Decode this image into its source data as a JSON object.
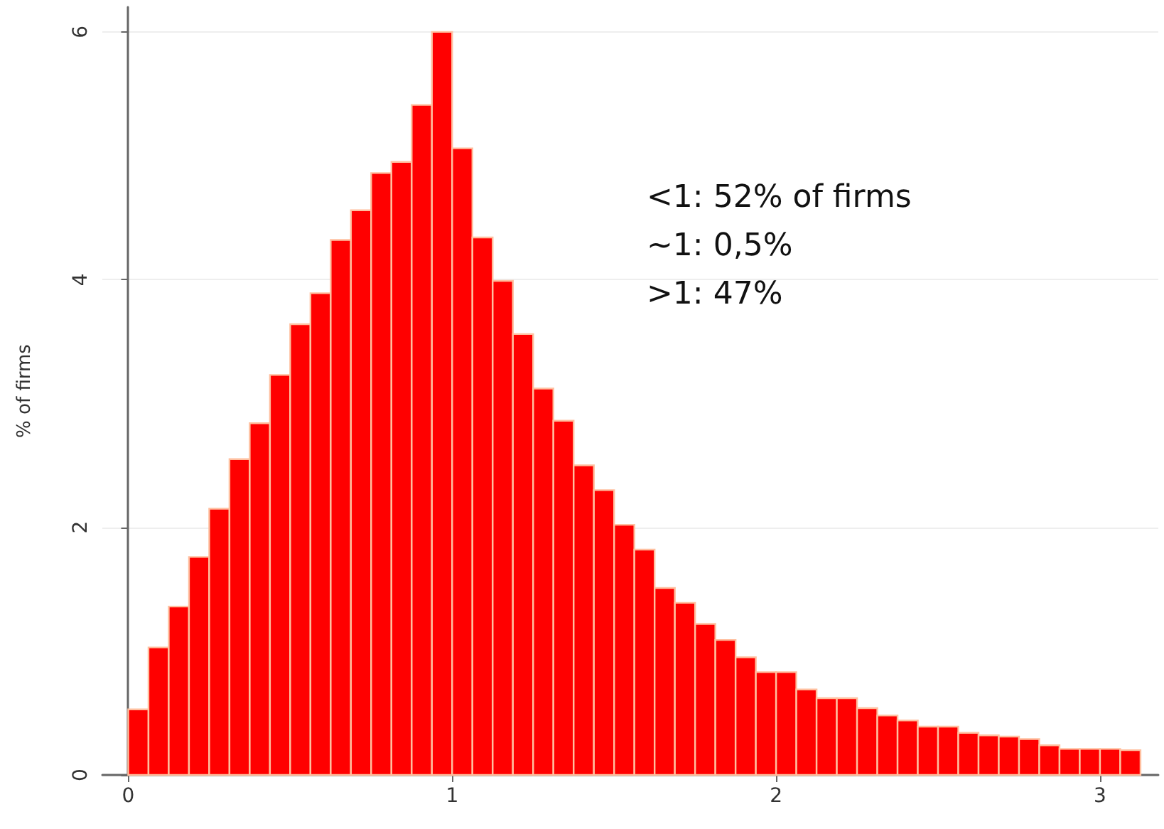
{
  "chart_data": {
    "type": "histogram",
    "ylabel": "% of firms",
    "color": "#ff0000",
    "bins": [
      0,
      0.0625,
      0.125,
      0.1875,
      0.25,
      0.3125,
      0.375,
      0.4375,
      0.5,
      0.5625,
      0.625,
      0.6875,
      0.75,
      0.8125,
      0.875,
      0.9375,
      1,
      1.0625,
      1.125,
      1.1875,
      1.25,
      1.3125,
      1.375,
      1.4375,
      1.5,
      1.5625,
      1.625,
      1.6875,
      1.75,
      1.8125,
      1.875,
      1.9375,
      2,
      2.0625,
      2.125,
      2.1875,
      2.25,
      2.3125,
      2.375,
      2.4375,
      2.5,
      2.5625,
      2.625,
      2.6875,
      2.75,
      2.8125,
      2.875,
      2.9375,
      3,
      3.0625,
      3.125
    ],
    "values": [
      0.53,
      1.03,
      1.36,
      1.76,
      2.15,
      2.55,
      2.84,
      3.23,
      3.64,
      3.89,
      4.32,
      4.56,
      4.86,
      4.95,
      5.41,
      6.0,
      5.06,
      4.34,
      3.99,
      3.56,
      3.12,
      2.86,
      2.5,
      2.3,
      2.02,
      1.82,
      1.51,
      1.39,
      1.22,
      1.09,
      0.95,
      0.83,
      0.83,
      0.69,
      0.62,
      0.62,
      0.54,
      0.48,
      0.44,
      0.39,
      0.39,
      0.34,
      0.32,
      0.31,
      0.29,
      0.24,
      0.21,
      0.21,
      0.21,
      0.2
    ],
    "xlim": [
      -0.08,
      3.18
    ],
    "xticks": [
      0,
      1,
      2,
      3
    ],
    "ylim": [
      0,
      6.2
    ],
    "yticks": [
      0,
      2,
      4,
      6
    ],
    "grid": "y",
    "annotations": [
      "<1: 52% of firms",
      "~1: 0,5%",
      ">1: 47%"
    ]
  }
}
